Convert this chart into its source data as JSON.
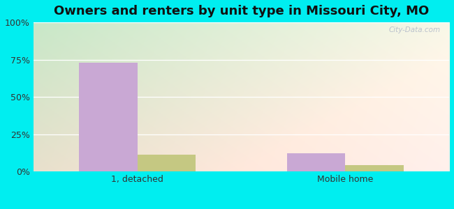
{
  "title": "Owners and renters by unit type in Missouri City, MO",
  "categories": [
    "1, detached",
    "Mobile home"
  ],
  "owner_values": [
    73,
    12
  ],
  "renter_values": [
    11,
    4
  ],
  "owner_color": "#c9a8d4",
  "renter_color": "#c5c882",
  "ylim": [
    0,
    100
  ],
  "yticks": [
    0,
    25,
    50,
    75,
    100
  ],
  "ytick_labels": [
    "0%",
    "25%",
    "50%",
    "75%",
    "100%"
  ],
  "background_outer": "#00eef0",
  "watermark": "City-Data.com",
  "bar_width": 0.28,
  "title_fontsize": 13,
  "tick_fontsize": 9,
  "legend_fontsize": 9,
  "grid_color": "#dddddd",
  "text_color": "#333333"
}
